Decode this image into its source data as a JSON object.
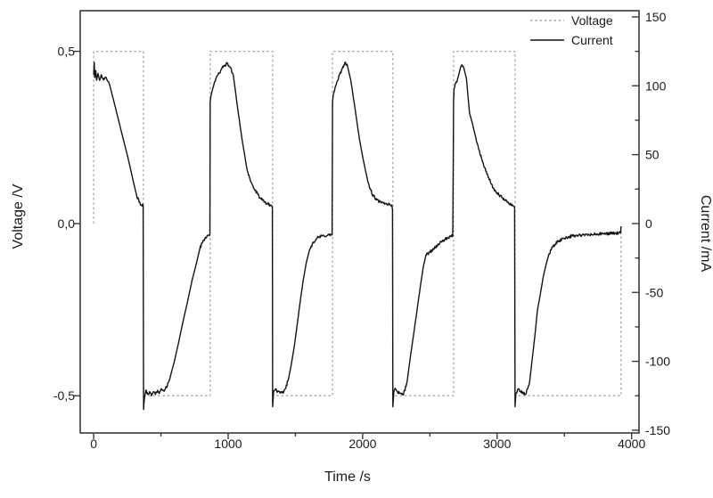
{
  "legend": {
    "items": [
      {
        "label": "Voltage",
        "style": "dashed",
        "color": "#a6a6a6"
      },
      {
        "label": "Current",
        "style": "solid",
        "color": "#141414"
      }
    ]
  },
  "chart_data": {
    "type": "line",
    "title": "",
    "grid": false,
    "legend_position": "top-right",
    "x_axis": {
      "label": "Time /s",
      "major_ticks": [
        0,
        1000,
        2000,
        3000,
        4000
      ],
      "minor_step": 500,
      "range": [
        -100,
        4055
      ]
    },
    "left_axis": {
      "label": "Voltage /V",
      "ticks": [
        {
          "value": 0.5,
          "label": "0,5"
        },
        {
          "value": 0.0,
          "label": "0,0"
        },
        {
          "value": -0.5,
          "label": "-0,5"
        }
      ],
      "range": [
        -0.608,
        0.618
      ]
    },
    "right_axis": {
      "label": "Current /mA",
      "major_ticks": [
        150,
        100,
        50,
        0,
        -50,
        -100,
        -150
      ],
      "minor_step": 25,
      "range": [
        -152,
        154.5
      ]
    },
    "series": [
      {
        "name": "Voltage",
        "axis": "left",
        "unit": "V",
        "style": "dashed",
        "color": "#a6a6a6",
        "points": [
          [
            0,
            0
          ],
          [
            0,
            0.5
          ],
          [
            370,
            0.5
          ],
          [
            370,
            -0.5
          ],
          [
            866,
            -0.5
          ],
          [
            866,
            0.5
          ],
          [
            1331,
            0.5
          ],
          [
            1331,
            -0.5
          ],
          [
            1776,
            -0.5
          ],
          [
            1776,
            0.5
          ],
          [
            2225,
            0.5
          ],
          [
            2225,
            -0.5
          ],
          [
            2676,
            -0.5
          ],
          [
            2676,
            0.5
          ],
          [
            3133,
            0.5
          ],
          [
            3133,
            -0.5
          ],
          [
            3921,
            -0.5
          ],
          [
            3921,
            -0.02
          ]
        ]
      },
      {
        "name": "Current",
        "axis": "right",
        "unit": "mA",
        "style": "solid",
        "color": "#141414",
        "points": [
          [
            0,
            108
          ],
          [
            4,
            117
          ],
          [
            9,
            106
          ],
          [
            15,
            111
          ],
          [
            22,
            104
          ],
          [
            32,
            109
          ],
          [
            44,
            104
          ],
          [
            56,
            108
          ],
          [
            70,
            105
          ],
          [
            85,
            106
          ],
          [
            100,
            104
          ],
          [
            118,
            101
          ],
          [
            152,
            88
          ],
          [
            185,
            75
          ],
          [
            218,
            62
          ],
          [
            252,
            49
          ],
          [
            278,
            38
          ],
          [
            298,
            29
          ],
          [
            318,
            21
          ],
          [
            338,
            15.5
          ],
          [
            352,
            13.5
          ],
          [
            368,
            13
          ],
          [
            371,
            -135
          ],
          [
            377,
            -127
          ],
          [
            388,
            -121
          ],
          [
            402,
            -124
          ],
          [
            416,
            -122
          ],
          [
            430,
            -125
          ],
          [
            445,
            -122
          ],
          [
            460,
            -124
          ],
          [
            475,
            -121
          ],
          [
            490,
            -123
          ],
          [
            505,
            -120
          ],
          [
            520,
            -121
          ],
          [
            543,
            -119
          ],
          [
            570,
            -111
          ],
          [
            600,
            -100
          ],
          [
            630,
            -87
          ],
          [
            660,
            -73
          ],
          [
            695,
            -58
          ],
          [
            730,
            -42
          ],
          [
            761,
            -30
          ],
          [
            790,
            -18
          ],
          [
            812,
            -13
          ],
          [
            832,
            -10
          ],
          [
            852,
            -8.5
          ],
          [
            864,
            -8
          ],
          [
            866,
            88
          ],
          [
            871,
            92
          ],
          [
            880,
            96
          ],
          [
            900,
            103
          ],
          [
            925,
            108
          ],
          [
            950,
            112
          ],
          [
            975,
            115
          ],
          [
            993,
            116
          ],
          [
            1012,
            114
          ],
          [
            1038,
            108
          ],
          [
            1073,
            82
          ],
          [
            1102,
            62
          ],
          [
            1139,
            40
          ],
          [
            1170,
            30
          ],
          [
            1200,
            24
          ],
          [
            1228,
            20
          ],
          [
            1252,
            17
          ],
          [
            1274,
            15.5
          ],
          [
            1298,
            14
          ],
          [
            1318,
            13.2
          ],
          [
            1327,
            12.5
          ],
          [
            1329,
            11
          ],
          [
            1331,
            -133
          ],
          [
            1338,
            -122
          ],
          [
            1352,
            -120
          ],
          [
            1368,
            -122
          ],
          [
            1386,
            -123
          ],
          [
            1404,
            -123
          ],
          [
            1425,
            -120
          ],
          [
            1448,
            -113
          ],
          [
            1470,
            -102
          ],
          [
            1492,
            -89
          ],
          [
            1515,
            -72
          ],
          [
            1538,
            -55
          ],
          [
            1560,
            -40
          ],
          [
            1582,
            -28
          ],
          [
            1606,
            -19
          ],
          [
            1632,
            -13.5
          ],
          [
            1662,
            -10.5
          ],
          [
            1700,
            -9
          ],
          [
            1740,
            -8.5
          ],
          [
            1773,
            -8
          ],
          [
            1776,
            88
          ],
          [
            1781,
            93
          ],
          [
            1794,
            98
          ],
          [
            1815,
            104
          ],
          [
            1842,
            111
          ],
          [
            1868,
            117
          ],
          [
            1888,
            114
          ],
          [
            1912,
            104
          ],
          [
            1941,
            85
          ],
          [
            1975,
            62
          ],
          [
            2007,
            45
          ],
          [
            2040,
            30
          ],
          [
            2072,
            21
          ],
          [
            2105,
            17
          ],
          [
            2140,
            15
          ],
          [
            2172,
            14.5
          ],
          [
            2202,
            14
          ],
          [
            2217,
            13.5
          ],
          [
            2222,
            10
          ],
          [
            2225,
            -133
          ],
          [
            2232,
            -122
          ],
          [
            2245,
            -120
          ],
          [
            2258,
            -122
          ],
          [
            2276,
            -123
          ],
          [
            2304,
            -124
          ],
          [
            2330,
            -115
          ],
          [
            2356,
            -96
          ],
          [
            2380,
            -80
          ],
          [
            2404,
            -63
          ],
          [
            2430,
            -45
          ],
          [
            2452,
            -31
          ],
          [
            2470,
            -23
          ],
          [
            2496,
            -21
          ],
          [
            2520,
            -19
          ],
          [
            2565,
            -15
          ],
          [
            2602,
            -12
          ],
          [
            2638,
            -10.5
          ],
          [
            2670,
            -9
          ],
          [
            2676,
            88
          ],
          [
            2680,
            98
          ],
          [
            2692,
            102
          ],
          [
            2706,
            105
          ],
          [
            2720,
            110
          ],
          [
            2735,
            115
          ],
          [
            2752,
            113
          ],
          [
            2772,
            105
          ],
          [
            2795,
            80
          ],
          [
            2815,
            73
          ],
          [
            2842,
            62
          ],
          [
            2868,
            53
          ],
          [
            2900,
            42
          ],
          [
            2927,
            36
          ],
          [
            2950,
            30
          ],
          [
            2967,
            26
          ],
          [
            2990,
            23
          ],
          [
            3012,
            21
          ],
          [
            3034,
            19
          ],
          [
            3056,
            17
          ],
          [
            3080,
            15.5
          ],
          [
            3102,
            14
          ],
          [
            3122,
            12.5
          ],
          [
            3130,
            11.5
          ],
          [
            3133,
            -133
          ],
          [
            3140,
            -123
          ],
          [
            3156,
            -120
          ],
          [
            3172,
            -122
          ],
          [
            3192,
            -123
          ],
          [
            3212,
            -124
          ],
          [
            3240,
            -116
          ],
          [
            3258,
            -101
          ],
          [
            3278,
            -84
          ],
          [
            3298,
            -64
          ],
          [
            3325,
            -49
          ],
          [
            3344,
            -38
          ],
          [
            3366,
            -29
          ],
          [
            3386,
            -22
          ],
          [
            3412,
            -17
          ],
          [
            3452,
            -13
          ],
          [
            3497,
            -10.5
          ],
          [
            3560,
            -9
          ],
          [
            3632,
            -8.5
          ],
          [
            3705,
            -8
          ],
          [
            3782,
            -7.5
          ],
          [
            3856,
            -7
          ],
          [
            3916,
            -7
          ],
          [
            3919,
            -6.5
          ],
          [
            3921,
            -2
          ]
        ]
      }
    ]
  }
}
